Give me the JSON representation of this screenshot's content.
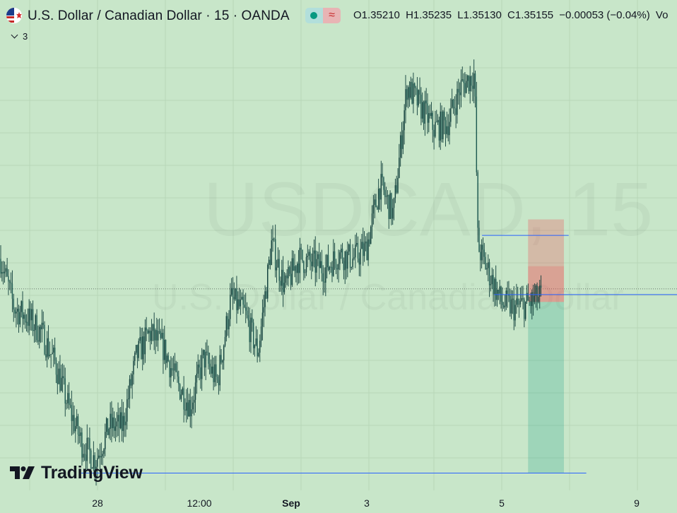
{
  "header": {
    "title": "U.S. Dollar / Canadian Dollar · 15 · OANDA",
    "status_indicator": "market-open",
    "open": "O1.35210",
    "high": "H1.35235",
    "low": "L1.35130",
    "close": "C1.35155",
    "change": "−0.00053 (−0.04%)",
    "volume_label": "Vo"
  },
  "indicators": {
    "collapsed_count": "3"
  },
  "watermark": {
    "symbol": "USDCAD, 15",
    "description": "U.S. Dollar / Canadian Dollar"
  },
  "brand": {
    "name": "TradingView"
  },
  "colors": {
    "background": "#c8e6c9",
    "candle": "#0f3d3a",
    "line": "#2962ff",
    "risk_zone": "rgba(242,54,69,0.25)",
    "reward_zone": "rgba(8,153,129,0.22)",
    "accent": "#089981"
  },
  "chart_data": {
    "type": "candlestick",
    "symbol": "USDCAD",
    "interval": "15",
    "exchange": "OANDA",
    "x_tick_labels": [
      {
        "label": "28",
        "bold": false
      },
      {
        "label": "12:00",
        "bold": false
      },
      {
        "label": "Sep",
        "bold": true
      },
      {
        "label": "3",
        "bold": false
      },
      {
        "label": "5",
        "bold": false
      },
      {
        "label": "9",
        "bold": false
      }
    ],
    "price_range_approx": [
      1.344,
      1.3615
    ],
    "last_close": 1.35155,
    "price_path": [
      {
        "t": 0.0,
        "p": 1.353
      },
      {
        "t": 0.02,
        "p": 1.351
      },
      {
        "t": 0.04,
        "p": 1.3506
      },
      {
        "t": 0.06,
        "p": 1.35
      },
      {
        "t": 0.08,
        "p": 1.3488
      },
      {
        "t": 0.1,
        "p": 1.347
      },
      {
        "t": 0.12,
        "p": 1.3455
      },
      {
        "t": 0.14,
        "p": 1.3448
      },
      {
        "t": 0.16,
        "p": 1.3462
      },
      {
        "t": 0.18,
        "p": 1.3462
      },
      {
        "t": 0.2,
        "p": 1.349
      },
      {
        "t": 0.22,
        "p": 1.35
      },
      {
        "t": 0.24,
        "p": 1.3494
      },
      {
        "t": 0.26,
        "p": 1.348
      },
      {
        "t": 0.28,
        "p": 1.347
      },
      {
        "t": 0.3,
        "p": 1.349
      },
      {
        "t": 0.32,
        "p": 1.348
      },
      {
        "t": 0.34,
        "p": 1.3514
      },
      {
        "t": 0.36,
        "p": 1.3508
      },
      {
        "t": 0.38,
        "p": 1.3492
      },
      {
        "t": 0.4,
        "p": 1.3536
      },
      {
        "t": 0.42,
        "p": 1.3518
      },
      {
        "t": 0.44,
        "p": 1.353
      },
      {
        "t": 0.46,
        "p": 1.3528
      },
      {
        "t": 0.48,
        "p": 1.3526
      },
      {
        "t": 0.5,
        "p": 1.3532
      },
      {
        "t": 0.52,
        "p": 1.353
      },
      {
        "t": 0.54,
        "p": 1.3534
      },
      {
        "t": 0.56,
        "p": 1.356
      },
      {
        "t": 0.58,
        "p": 1.3548
      },
      {
        "t": 0.6,
        "p": 1.36
      },
      {
        "t": 0.62,
        "p": 1.3592
      },
      {
        "t": 0.64,
        "p": 1.3583
      },
      {
        "t": 0.66,
        "p": 1.3585
      },
      {
        "t": 0.68,
        "p": 1.36
      },
      {
        "t": 0.7,
        "p": 1.3605
      },
      {
        "t": 0.705,
        "p": 1.3535
      },
      {
        "t": 0.72,
        "p": 1.3525
      },
      {
        "t": 0.74,
        "p": 1.3512
      },
      {
        "t": 0.76,
        "p": 1.351
      },
      {
        "t": 0.78,
        "p": 1.3512
      },
      {
        "t": 0.8,
        "p": 1.3515
      }
    ],
    "horizontal_lines": [
      {
        "price": 1.35395,
        "t_start": 0.712,
        "t_end": 0.84
      },
      {
        "price": 1.35155,
        "t_start": 0.73,
        "t_end": 1.0
      },
      {
        "price": 1.3443,
        "t_start": 0.12,
        "t_end": 0.866
      }
    ],
    "position": {
      "type": "short",
      "entry": 1.35125,
      "stop": 1.3546,
      "target": 1.3443,
      "t_start": 0.78,
      "t_end": 0.833
    },
    "grid": true,
    "last_price_dotted_line": true
  }
}
